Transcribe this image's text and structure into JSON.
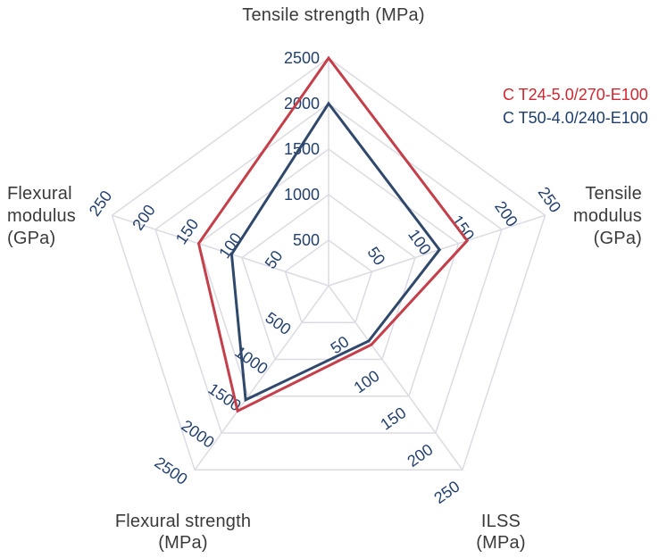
{
  "figure": {
    "background": "#FFFFFF"
  },
  "legend": {
    "position": "top-right",
    "items": [
      {
        "label": "C T24-5.0/270-E100",
        "color": "#D22630"
      },
      {
        "label": "C T50-4.0/240-E100",
        "color": "#1F3E6E"
      }
    ]
  },
  "chart_data": {
    "type": "radar",
    "shape": "pentagon",
    "rings": 5,
    "grid_on": true,
    "grid_color": "#DBDBE3",
    "tick_label_color": "#24406E",
    "axis_title_color": "#3A3A3A",
    "legend_position": "top-right",
    "axes": [
      {
        "id": "tensile-strength",
        "label": "Tensile strength (MPa)",
        "title_lines": [
          "Tensile strength (MPa)"
        ],
        "min": 0,
        "max": 2500,
        "ticks": [
          500,
          1000,
          1500,
          2000,
          2500
        ]
      },
      {
        "id": "tensile-modulus",
        "label": "Tensile modulus (GPa)",
        "title_lines": [
          "Tensile",
          "modulus",
          "(GPa)"
        ],
        "min": 0,
        "max": 250,
        "ticks": [
          50,
          100,
          150,
          200,
          250
        ]
      },
      {
        "id": "ilss",
        "label": "ILSS (MPa)",
        "title_lines": [
          "ILSS",
          "(MPa)"
        ],
        "min": 0,
        "max": 250,
        "ticks": [
          50,
          100,
          150,
          200,
          250
        ]
      },
      {
        "id": "flexural-strength",
        "label": "Flexural strength (MPa)",
        "title_lines": [
          "Flexural strength",
          "(MPa)"
        ],
        "min": 0,
        "max": 2500,
        "ticks": [
          500,
          1000,
          1500,
          2000,
          2500
        ]
      },
      {
        "id": "flexural-modulus",
        "label": "Flexural modulus (GPa)",
        "title_lines": [
          "Flexural",
          "modulus",
          "(GPa)"
        ],
        "min": 0,
        "max": 250,
        "ticks": [
          50,
          100,
          150,
          200,
          250
        ]
      }
    ],
    "series": [
      {
        "name": "C T24-5.0/270-E100",
        "color": "#C43F49",
        "values": [
          2500,
          160,
          80,
          1700,
          150
        ]
      },
      {
        "name": "C T50-4.0/240-E100",
        "color": "#30486B",
        "values": [
          2000,
          128,
          75,
          1550,
          112
        ]
      }
    ]
  }
}
